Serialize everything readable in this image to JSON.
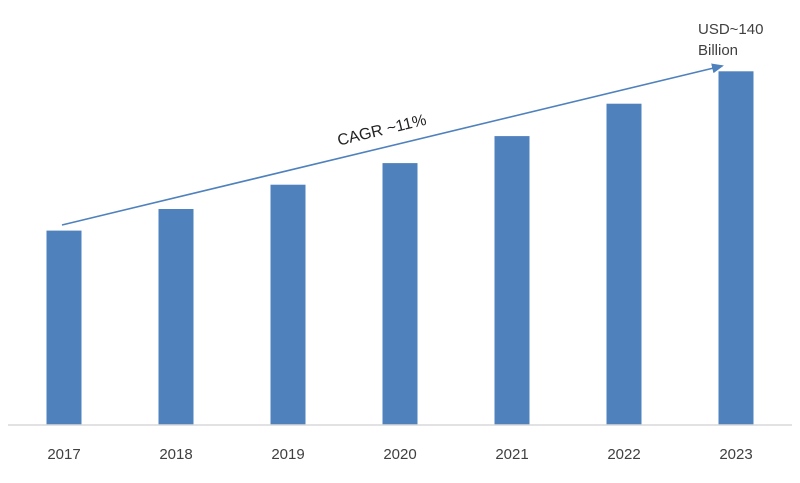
{
  "chart_data": {
    "type": "bar",
    "categories": [
      "2017",
      "2018",
      "2019",
      "2020",
      "2021",
      "2022",
      "2023"
    ],
    "values": [
      72,
      80,
      89,
      97,
      107,
      119,
      131
    ],
    "title": "",
    "xlabel": "",
    "ylabel": "",
    "ylim": [
      0,
      150
    ],
    "grid": false,
    "legend": "none",
    "bar_color": "#4f81bd",
    "axis_color": "#d9d9d9",
    "annotations": {
      "cagr": "CAGR ~11%",
      "end_value_line1": "USD~140",
      "end_value_line2": "Billion"
    },
    "arrow_color": "#4f81bd"
  }
}
